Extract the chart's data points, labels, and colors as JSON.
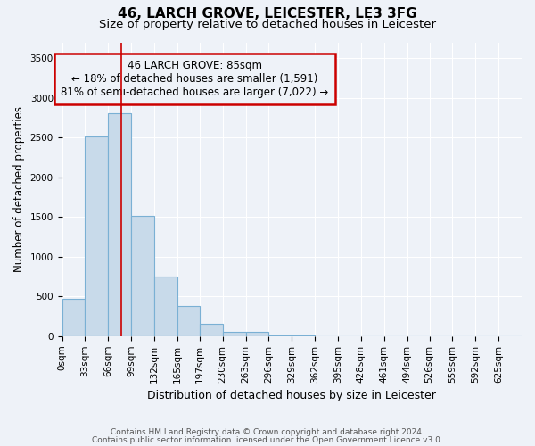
{
  "title": "46, LARCH GROVE, LEICESTER, LE3 3FG",
  "subtitle": "Size of property relative to detached houses in Leicester",
  "xlabel": "Distribution of detached houses by size in Leicester",
  "ylabel": "Number of detached properties",
  "bar_color": "#c8daea",
  "bar_edge_color": "#7ab0d4",
  "bar_edge_width": 0.8,
  "bins": [
    0,
    33,
    66,
    99,
    132,
    165,
    197,
    230,
    263,
    296,
    329,
    362,
    395,
    428,
    461,
    494,
    526,
    559,
    592,
    625,
    658
  ],
  "counts": [
    470,
    2510,
    2810,
    1510,
    750,
    385,
    150,
    50,
    50,
    10,
    5,
    3,
    2,
    1,
    0,
    0,
    0,
    0,
    0,
    0
  ],
  "ylim": [
    0,
    3700
  ],
  "yticks": [
    0,
    500,
    1000,
    1500,
    2000,
    2500,
    3000,
    3500
  ],
  "red_line_x": 85,
  "annotation_line1": "46 LARCH GROVE: 85sqm",
  "annotation_line2": "← 18% of detached houses are smaller (1,591)",
  "annotation_line3": "81% of semi-detached houses are larger (7,022) →",
  "annotation_box_color": "#cc0000",
  "footer_line1": "Contains HM Land Registry data © Crown copyright and database right 2024.",
  "footer_line2": "Contains public sector information licensed under the Open Government Licence v3.0.",
  "bg_color": "#eef2f8",
  "grid_color": "#ffffff",
  "title_fontsize": 11,
  "subtitle_fontsize": 9.5,
  "tick_label_fontsize": 7.5,
  "ylabel_fontsize": 8.5,
  "xlabel_fontsize": 9,
  "footer_fontsize": 6.5
}
